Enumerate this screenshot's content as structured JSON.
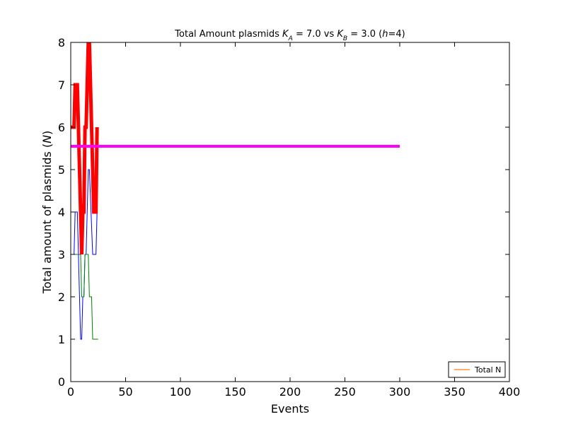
{
  "chart_data": {
    "type": "line",
    "title_parts": [
      {
        "text": "Total Amount plasmids ",
        "italic": false
      },
      {
        "text": "K",
        "italic": true
      },
      {
        "text": "A",
        "italic": true,
        "sub": true
      },
      {
        "text": " = 7.0 vs ",
        "italic": false
      },
      {
        "text": "K",
        "italic": true
      },
      {
        "text": "B",
        "italic": true,
        "sub": true
      },
      {
        "text": " = 3.0 (",
        "italic": false
      },
      {
        "text": "h",
        "italic": true
      },
      {
        "text": "=4)",
        "italic": false
      }
    ],
    "xlabel": "Events",
    "ylabel_parts": [
      {
        "text": "Total amount of plasmids (",
        "italic": false
      },
      {
        "text": "N",
        "italic": true
      },
      {
        "text": ")",
        "italic": false
      }
    ],
    "xlim": [
      0,
      400
    ],
    "ylim": [
      0,
      8
    ],
    "xticks": [
      0,
      50,
      100,
      150,
      200,
      250,
      300,
      350,
      400
    ],
    "yticks": [
      0,
      1,
      2,
      3,
      4,
      5,
      6,
      7,
      8
    ],
    "grid": false,
    "legend_position": "lower-right",
    "series": [
      {
        "color": "#0000ff",
        "width": 1,
        "x": [
          0,
          3,
          4,
          5,
          6,
          9,
          10,
          11,
          12,
          13,
          14,
          16,
          17,
          20,
          21,
          22,
          23,
          24
        ],
        "y": [
          3,
          3,
          4,
          4,
          4,
          1,
          1,
          2,
          2,
          3,
          3,
          5,
          5,
          3,
          3,
          3,
          3,
          4
        ]
      },
      {
        "color": "#008000",
        "width": 1,
        "x": [
          0,
          3,
          4,
          5,
          6,
          9,
          10,
          11,
          12,
          13,
          14,
          16,
          17,
          18,
          19,
          20,
          22,
          25
        ],
        "y": [
          3,
          3,
          3,
          3,
          3,
          3,
          2,
          2,
          2,
          3,
          3,
          3,
          2,
          2,
          2,
          1,
          1,
          1
        ]
      },
      {
        "color": "#ff0000",
        "width": 5,
        "x": [
          0,
          3,
          4,
          5,
          6,
          9,
          10,
          11,
          12,
          13,
          14,
          16,
          17,
          20,
          21,
          22,
          23,
          24
        ],
        "y": [
          6,
          6,
          7,
          7,
          7,
          4,
          3,
          4,
          4,
          6,
          6,
          8,
          8,
          5,
          4,
          4,
          4,
          6
        ]
      },
      {
        "color": "#ff00ff",
        "width": 4,
        "x": [
          0,
          300
        ],
        "y": [
          5.55,
          5.55
        ]
      }
    ],
    "legend": [
      {
        "name": "Total N",
        "color": "#ff7f0e"
      }
    ]
  }
}
